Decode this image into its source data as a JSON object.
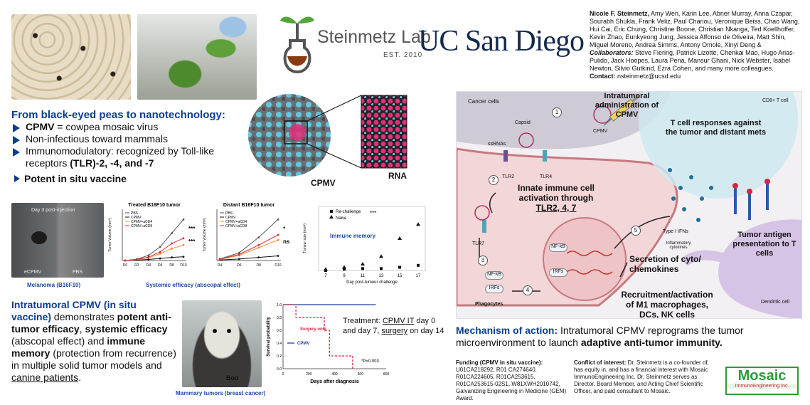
{
  "header": {
    "lab_name": "Steinmetz Lab",
    "lab_est": "EST. 2010",
    "university": "UC San Diego",
    "authors_lead": "Nicole F. Steinmetz,",
    "authors_rest": " Amy Wen, Karin Lee, Abner Murray, Anna Czapar, Sourabh Shukla, Frank Veliz, Paul Chariou, Veronique Beiss, Chao Wang, Hui Cai, Eric Chung, Christine Boone, Christian Nkanga, Ted Koellhoffer, Kevin Zhao, Eunkyeong Jung, Jessica Affonso de Oliveira, Matt Shin, Miguel Moreno, Andrea Simms, Antony Omole, Xinyi Deng &",
    "collab_label": "Collaborators:",
    "collab_rest": " Steve Fiering, Patrick Lizotte, Chenkai Mao, Hugo Arias-Pulido, Jack Hoopes, Laura Pena, Mansur Ghani, Nick Webster, Isabel Newton, Silvio Gutkind, Ezra Cohen, and many more colleagues.",
    "contact_label": "Contact:",
    "contact_email": " nsteinmetz@ucsd.edu"
  },
  "intro": {
    "title": "From black-eyed peas to nanotechnology:",
    "b1_bold": "CPMV",
    "b1_rest": " = cowpea mosaic virus",
    "b2": "Non-infectious toward mammals",
    "b3_a": "Immunomodulatory: recognized by Toll-like receptors ",
    "b3_bold": "(TLR)-2, -4, and -7",
    "b4": "Potent in situ vaccine"
  },
  "virus": {
    "cpmv_label": "CPMV",
    "rna_label": "RNA"
  },
  "melanoma": {
    "photo_label": "Day 3 post-injection",
    "left_label": "eCPMV",
    "right_label": "PBS",
    "caption": "Melanoma (B16F10)",
    "systemic_caption": "Systemic efficacy (abscopal effect)"
  },
  "chart_data": [
    {
      "type": "line",
      "title": "Treated B16F10 tumor",
      "ylabel": "Tumor Volume (mm³)",
      "categories": [
        "D0",
        "D2",
        "D4",
        "D6",
        "D8",
        "D10"
      ],
      "ylim": [
        0,
        1500
      ],
      "legend": [
        "PBS",
        "CPMV",
        "CPMV+aCD4",
        "CPMV+aCD8"
      ],
      "series": [
        {
          "name": "PBS",
          "values": [
            0,
            40,
            150,
            400,
            800,
            1200
          ]
        },
        {
          "name": "CPMV",
          "values": [
            0,
            10,
            30,
            60,
            90,
            110
          ]
        },
        {
          "name": "CPMV+aCD4",
          "values": [
            0,
            20,
            80,
            200,
            350,
            450
          ]
        },
        {
          "name": "CPMV+aCD8",
          "values": [
            0,
            25,
            100,
            250,
            500,
            650
          ]
        }
      ],
      "sig": [
        "***",
        "***"
      ]
    },
    {
      "type": "line",
      "title": "Distant B16F10 tumor",
      "ylabel": "Tumor Volume (mm³)",
      "categories": [
        "D4",
        "D6",
        "D8",
        "D10"
      ],
      "ylim": [
        0,
        1000
      ],
      "legend": [
        "PBS",
        "CPMV",
        "CPMV+aCD4",
        "CPMV+aCD8"
      ],
      "series": [
        {
          "name": "PBS",
          "values": [
            30,
            150,
            450,
            800
          ]
        },
        {
          "name": "CPMV",
          "values": [
            10,
            30,
            60,
            90
          ]
        },
        {
          "name": "CPMV+aCD4",
          "values": [
            20,
            100,
            250,
            400
          ]
        },
        {
          "name": "CPMV+aCD8",
          "values": [
            25,
            120,
            300,
            500
          ]
        }
      ],
      "sig": [
        "*",
        "ns"
      ]
    },
    {
      "type": "scatter",
      "xlabel": "Day post-tumour challenge",
      "ylabel": "Tumour size (mm²)",
      "categories": [
        "7",
        "9",
        "11",
        "13",
        "15",
        "17"
      ],
      "ylim": [
        0,
        100
      ],
      "annotation": "Immune memory",
      "series": [
        {
          "name": "Re-challenge",
          "values": [
            0,
            2,
            3,
            3,
            5,
            8
          ]
        },
        {
          "name": "Naive",
          "values": [
            2,
            5,
            10,
            22,
            50,
            72
          ]
        }
      ],
      "sig": "***"
    },
    {
      "type": "line",
      "ylabel": "Survival probability",
      "xlabel": "Days after diagnosis",
      "x_ticks": [
        "0",
        "200",
        "400",
        "600",
        "800"
      ],
      "y_ticks": [
        "0.0",
        "0.2",
        "0.4",
        "0.6",
        "0.8",
        "1.0"
      ],
      "series": [
        {
          "name": "CPMV",
          "points": [
            [
              0,
              1
            ],
            [
              720,
              1
            ]
          ]
        },
        {
          "name": "Surgery only",
          "points": [
            [
              0,
              1
            ],
            [
              100,
              1
            ],
            [
              100,
              0.8
            ],
            [
              320,
              0.8
            ],
            [
              320,
              0.6
            ],
            [
              360,
              0.6
            ],
            [
              360,
              0.2
            ],
            [
              540,
              0.2
            ],
            [
              540,
              0
            ]
          ]
        }
      ],
      "annotation": "*P=0.003"
    }
  ],
  "clinical": {
    "title": "Intratumoral CPMV (in situ vaccine)",
    "t1": " demonstrates ",
    "t2": "potent anti-tumor efficacy",
    "t3": ", ",
    "t4": "systemic efficacy",
    "t5": " (abscopal effect) and ",
    "t6": "immune memory",
    "t7": " (protection from recurrence) in multiple solid tumor models and ",
    "t8": "canine patients",
    "t9": ".",
    "dog_name": "Boo",
    "mammary_caption": "Mammary tumors (breast cancer)",
    "treatment_a": "Treatment: ",
    "treatment_b": "CPMV IT",
    "treatment_c": " day 0 and day 7, ",
    "treatment_d": "surgery",
    "treatment_e": " on day 14"
  },
  "mechanism": {
    "intratumoral": "Intratumoral administration of CPMV",
    "cancer_cells": "Cancer cells",
    "cd8": "CD8+ T cell",
    "t_cell": "T cell responses against the tumor and distant mets",
    "capsid": "Capsid",
    "ssrnas": "ssRNAs",
    "cpmv": "CPMV",
    "tlr2": "TLR2",
    "tlr4": "TLR4",
    "tlr7": "TLR7",
    "innate": "Innate immune cell activation through ",
    "innate_tlrs": "TLR2, 4, 7",
    "type_ifns": "Type I IFNs",
    "inflammatory": "Inflammatory cytokines",
    "nfkb": "NF-kB",
    "irfs": "IRFs",
    "phagocytes": "Phagocytes",
    "secretion": "Secretion of cyto/ chemokines",
    "recruitment": "Recruitment/activation of M1 macrophages, DCs, NK cells",
    "antigen": "Tumor antigen presentation to T cells",
    "dendritic": "Dendritic cell",
    "steps": [
      "1",
      "2",
      "3",
      "4",
      "5"
    ]
  },
  "summary": {
    "label": "Mechanism of action:",
    "a": " Intratumoral CPMV reprograms the tumor microenvironment to launch ",
    "b": "adaptive anti-tumor immunity."
  },
  "funding": {
    "label": "Funding (CPMV in situ vaccine):",
    "text": "U01CA218292, R01 CA274640, R01CA224605, R01CA253615, R01CA253615-02S1, W81XWH2010742, Galvanizing Engineering in Medicine (GEM) Award."
  },
  "conflict": {
    "label": "Conflict of interest:",
    "text": " Dr. Steinmetz is a co-founder of, has equity in, and has a financial interest with Mosaic ImmunoEngineering Inc. Dr. Steinmetz serves as Director, Board Member, and Acting Chief Scientific Officer, and paid consultant to Mosaic."
  },
  "mosaic": {
    "name": "Mosaic",
    "sub": "ImmunoEngineering Inc."
  },
  "colors": {
    "navy": "#0b3d91",
    "red": "#d7263d",
    "orange": "#f08a24",
    "pink": "#e0307a",
    "cyan": "#5ec9e0",
    "purple": "#b79cd0",
    "green": "#2e9a3a"
  }
}
